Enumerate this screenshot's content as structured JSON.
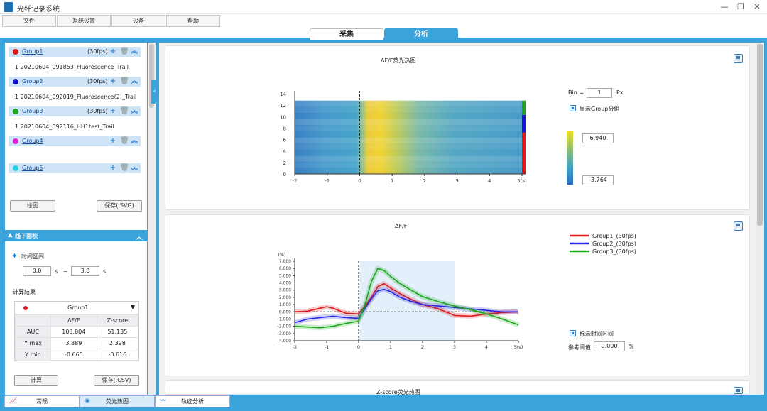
{
  "window": {
    "title": "光纤记录系统",
    "min_glyph": "—",
    "max_glyph": "❐",
    "close_glyph": "✕"
  },
  "menu": [
    "文件",
    "系统设置",
    "设备",
    "帮助"
  ],
  "top_tabs": {
    "acquire": "采集",
    "analyze": "分析"
  },
  "groups": [
    {
      "name": "Group1",
      "fps": "(30fps)",
      "color": "#e01818",
      "file": "1   20210604_091853_Fluorescence_Trail"
    },
    {
      "name": "Group2",
      "fps": "(30fps)",
      "color": "#1414d8",
      "file": "1   20210604_092019_Fluorescence(2)_Trail"
    },
    {
      "name": "Group3",
      "fps": "(30fps)",
      "color": "#1aa51a",
      "file": "1   20210604_092116_HH1test_Trail"
    },
    {
      "name": "Group4",
      "fps": "",
      "color": "#e020e0",
      "file": ""
    },
    {
      "name": "Group5",
      "fps": "",
      "color": "#20d8e8",
      "file": ""
    }
  ],
  "group_icons": {
    "add": "+",
    "delete": "🗑",
    "collapse": "︽"
  },
  "left_buttons": {
    "plot": "绘图",
    "save_svg": "保存(.SVG)"
  },
  "offline": {
    "title": "线下面积",
    "icon": "⛰",
    "chevron": "︿",
    "time_range_label": "时间区间",
    "star": "✱",
    "from": "0.0",
    "from_unit": "s",
    "dash": "~",
    "to": "3.0",
    "to_unit": "s",
    "result_label": "计算结果",
    "selected_group": "Group1",
    "dropdown_arrow": "▼",
    "col_headers": [
      "ΔF/F",
      "Z-score"
    ],
    "rows": [
      {
        "label": "AUC",
        "v1": "103.804",
        "v2": "51.135"
      },
      {
        "label": "Y max",
        "v1": "3.889",
        "v2": "2.398"
      },
      {
        "label": "Y min",
        "v1": "-0.665",
        "v2": "-0.616"
      }
    ],
    "calc_button": "计算",
    "save_csv_button": "保存(.CSV)"
  },
  "bottom_tabs": [
    {
      "label": "常规",
      "icon": "📈"
    },
    {
      "label": "荧光热图",
      "icon": "◉"
    },
    {
      "label": "轨迹分析",
      "icon": "〰"
    }
  ],
  "collapse_handle": "‹",
  "chart_data": [
    {
      "type": "heatmap",
      "title": "ΔF/F荧光热图",
      "x_ticks": [
        "-2",
        "-1",
        "0",
        "1",
        "2",
        "3",
        "4",
        "5(s)"
      ],
      "y_ticks": [
        "0",
        "2",
        "4",
        "6",
        "8",
        "10",
        "12",
        "14"
      ],
      "xlim": [
        -2,
        5
      ],
      "ylim": [
        0,
        14
      ],
      "rows": 12,
      "color_scale": {
        "max": "6.940",
        "min": "-3.764"
      },
      "bin_label": "Bin =",
      "bin_value": "1",
      "bin_unit": "Px",
      "show_group_label": "显示Group分组",
      "group_bands": [
        {
          "color": "#1aa51a",
          "from": 10.3,
          "to": 12.8
        },
        {
          "color": "#1414d8",
          "from": 7.2,
          "to": 10.3
        },
        {
          "color": "#e01818",
          "from": 0,
          "to": 7.2
        }
      ]
    },
    {
      "type": "line",
      "title": "ΔF/F",
      "ylabel": "(%)",
      "x_ticks": [
        "-2",
        "-1",
        "0",
        "1",
        "2",
        "3",
        "4",
        "5(s)"
      ],
      "y_ticks": [
        "-4.000",
        "-3.000",
        "-2.000",
        "-1.000",
        "0.000",
        "1.000",
        "2.000",
        "3.000",
        "4.000",
        "5.000",
        "6.000",
        "7.000"
      ],
      "xlim": [
        -2,
        5
      ],
      "ylim": [
        -4,
        7
      ],
      "highlight_range": [
        0,
        3
      ],
      "series": [
        {
          "name": "Group1_(30fps)",
          "color": "#e01818",
          "x": [
            -2,
            -1.6,
            -1.2,
            -1.0,
            -0.8,
            -0.4,
            0,
            0.2,
            0.4,
            0.6,
            0.8,
            1.0,
            1.3,
            1.6,
            2.0,
            2.5,
            3.0,
            3.5,
            4.0,
            4.5,
            5.0
          ],
          "y": [
            0.0,
            0.1,
            0.5,
            0.7,
            0.5,
            -0.2,
            -0.3,
            0.8,
            2.0,
            3.5,
            3.9,
            3.3,
            2.5,
            1.8,
            1.0,
            0.4,
            -0.5,
            -0.6,
            -0.3,
            -0.1,
            0.0
          ]
        },
        {
          "name": "Group2_(30fps)",
          "color": "#2828e0",
          "x": [
            -2,
            -1.6,
            -1.2,
            -0.8,
            -0.4,
            0,
            0.2,
            0.4,
            0.6,
            0.8,
            1.0,
            1.3,
            1.6,
            2.0,
            2.5,
            3.0,
            3.5,
            4.0,
            4.5,
            5.0
          ],
          "y": [
            -1.5,
            -1.0,
            -0.8,
            -0.6,
            -0.8,
            -0.9,
            0.5,
            1.8,
            2.9,
            3.1,
            2.8,
            2.0,
            1.5,
            1.0,
            0.8,
            0.6,
            0.4,
            0.2,
            0.0,
            0.0
          ]
        },
        {
          "name": "Group3_(30fps)",
          "color": "#1aa51a",
          "x": [
            -2,
            -1.6,
            -1.2,
            -0.8,
            -0.4,
            0,
            0.2,
            0.4,
            0.6,
            0.8,
            1.0,
            1.3,
            1.6,
            2.0,
            2.5,
            3.0,
            3.5,
            4.0,
            4.5,
            5.0
          ],
          "y": [
            -2.0,
            -2.1,
            -2.2,
            -2.0,
            -1.6,
            -1.3,
            1.0,
            4.2,
            6.0,
            5.7,
            4.9,
            3.9,
            3.1,
            2.1,
            1.4,
            0.8,
            0.3,
            -0.3,
            -1.0,
            -1.8
          ]
        }
      ],
      "show_range_label": "标示时间区间",
      "ref_threshold_label": "参考阈值",
      "ref_threshold_value": "0.000",
      "ref_threshold_unit": "%"
    }
  ],
  "third_panel_title": "Z-score荧光热图"
}
